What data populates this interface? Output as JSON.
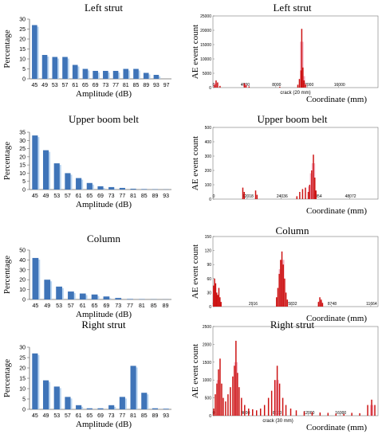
{
  "colors": {
    "bar_blue": "#3f74b8",
    "bar_shadow": "#aaccee",
    "ae_red": "#cc1111",
    "ae_pink": "#f2a0b8"
  },
  "chart_data": [
    {
      "type": "bar",
      "title": "Left strut",
      "xlabel": "Amplitude (dB)",
      "ylabel": "Percentage",
      "ylim": [
        0,
        30
      ],
      "yticks": [
        "0",
        "5",
        "10",
        "15",
        "20",
        "25",
        "30"
      ],
      "categories": [
        "45",
        "49",
        "53",
        "57",
        "61",
        "65",
        "69",
        "73",
        "77",
        "81",
        "85",
        "89",
        "93",
        "97"
      ],
      "values": [
        27,
        12,
        11,
        11,
        7,
        5,
        4,
        4,
        4,
        5,
        5,
        3,
        2,
        0
      ]
    },
    {
      "type": "bar",
      "title": "Upper boom belt",
      "xlabel": "Amplitude (dB)",
      "ylabel": "Percentage",
      "ylim": [
        0,
        35
      ],
      "yticks": [
        "0",
        "5",
        "10",
        "15",
        "20",
        "25",
        "30",
        "35"
      ],
      "categories": [
        "45",
        "49",
        "53",
        "57",
        "61",
        "65",
        "69",
        "73",
        "77",
        "81",
        "85",
        "89",
        "93"
      ],
      "values": [
        33,
        24,
        16,
        10,
        7,
        4,
        2,
        1.5,
        1,
        0.5,
        0.3,
        0.2,
        0.1
      ]
    },
    {
      "type": "bar",
      "title": "Column",
      "xlabel": "Amplitude (dB)",
      "ylabel": "Percentage",
      "ylim": [
        0,
        50
      ],
      "yticks": [
        "0",
        "10",
        "20",
        "30",
        "40",
        "50"
      ],
      "categories": [
        "45",
        "49",
        "53",
        "57",
        "61",
        "65",
        "69",
        "73",
        "77",
        "81",
        "85",
        "89"
      ],
      "values": [
        42,
        20,
        13,
        8,
        6,
        5,
        3,
        1.5,
        0.5,
        0.3,
        0.2,
        0.1
      ]
    },
    {
      "type": "bar",
      "title": "Right strut",
      "xlabel": "Amplitude (dB)",
      "ylabel": "Percentage",
      "ylim": [
        0,
        30
      ],
      "yticks": [
        "0",
        "5",
        "10",
        "15",
        "20",
        "25",
        "30"
      ],
      "categories": [
        "45",
        "49",
        "53",
        "57",
        "61",
        "65",
        "69",
        "73",
        "77",
        "81",
        "85",
        "89",
        "93"
      ],
      "values": [
        27,
        14,
        11,
        6,
        2,
        0.5,
        0.5,
        2,
        6,
        21,
        8,
        0.5,
        0.3
      ]
    },
    {
      "type": "bar",
      "title": "Left strut",
      "xlabel": "Coordinate (mm)",
      "ylabel": "AE event count",
      "xlim": [
        0,
        21000
      ],
      "ylim": [
        0,
        25000
      ],
      "yticks": [
        "0",
        "5000",
        "10000",
        "15000",
        "20000",
        "25000"
      ],
      "xticks": [
        {
          "v": 0,
          "label": "0"
        },
        {
          "v": 4000,
          "label": "4000"
        },
        {
          "v": 8000,
          "label": "8000"
        },
        {
          "v": 12000,
          "label": "12000"
        },
        {
          "v": 16000,
          "label": "16000"
        }
      ],
      "annotation": {
        "text": "crack (20 mm)",
        "x": 10500
      },
      "bars": [
        [
          200,
          1000
        ],
        [
          400,
          2500
        ],
        [
          600,
          1800
        ],
        [
          900,
          600
        ],
        [
          4000,
          1500
        ],
        [
          4200,
          800
        ],
        [
          4600,
          400
        ],
        [
          8500,
          300
        ],
        [
          10800,
          1000
        ],
        [
          11000,
          3000
        ],
        [
          11200,
          6000
        ],
        [
          11300,
          20500
        ],
        [
          11450,
          7000
        ],
        [
          11600,
          2500
        ],
        [
          11800,
          1200
        ]
      ],
      "pink": [
        [
          300,
          1500
        ],
        [
          4100,
          1200
        ],
        [
          11300,
          16000
        ],
        [
          11500,
          4000
        ]
      ]
    },
    {
      "type": "bar",
      "title": "Upper boom belt",
      "xlabel": "Coordinate (mm)",
      "ylabel": "AE event count",
      "xlim": [
        0,
        58000
      ],
      "ylim": [
        0,
        500
      ],
      "yticks": [
        "0",
        "100",
        "200",
        "300",
        "400",
        "500"
      ],
      "xticks": [
        {
          "v": 0,
          "label": "0"
        },
        {
          "v": 12018,
          "label": "12018"
        },
        {
          "v": 24036,
          "label": "24036"
        },
        {
          "v": 36054,
          "label": "36054"
        },
        {
          "v": 48072,
          "label": "48072"
        }
      ],
      "bars": [
        [
          10500,
          80
        ],
        [
          11000,
          50
        ],
        [
          15000,
          60
        ],
        [
          15500,
          30
        ],
        [
          29500,
          20
        ],
        [
          30500,
          50
        ],
        [
          31500,
          70
        ],
        [
          32500,
          80
        ],
        [
          33500,
          50
        ],
        [
          34000,
          100
        ],
        [
          34700,
          200
        ],
        [
          35300,
          310
        ],
        [
          35800,
          150
        ],
        [
          36200,
          60
        ]
      ],
      "pink": [
        [
          34700,
          180
        ],
        [
          35300,
          250
        ],
        [
          34000,
          90
        ]
      ]
    },
    {
      "type": "bar",
      "title": "Column",
      "xlabel": "Coordinate (mm)",
      "ylabel": "AE event count",
      "xlim": [
        0,
        12200
      ],
      "ylim": [
        0,
        150
      ],
      "yticks": [
        "0",
        "30",
        "60",
        "90",
        "120",
        "150"
      ],
      "xticks": [
        {
          "v": 0,
          "label": "0"
        },
        {
          "v": 2916,
          "label": "2916"
        },
        {
          "v": 5832,
          "label": "5832"
        },
        {
          "v": 8748,
          "label": "8748"
        },
        {
          "v": 11664,
          "label": "11664"
        }
      ],
      "bars": [
        [
          50,
          45
        ],
        [
          120,
          60
        ],
        [
          200,
          50
        ],
        [
          280,
          30
        ],
        [
          360,
          25
        ],
        [
          440,
          40
        ],
        [
          520,
          20
        ],
        [
          600,
          10
        ],
        [
          4700,
          20
        ],
        [
          4800,
          40
        ],
        [
          4900,
          70
        ],
        [
          5000,
          100
        ],
        [
          5100,
          118
        ],
        [
          5200,
          90
        ],
        [
          5300,
          60
        ],
        [
          5400,
          30
        ],
        [
          5500,
          15
        ],
        [
          7800,
          10
        ],
        [
          7900,
          20
        ],
        [
          8000,
          15
        ],
        [
          8100,
          8
        ]
      ],
      "pink": [
        [
          120,
          40
        ],
        [
          5000,
          80
        ],
        [
          5150,
          100
        ],
        [
          7950,
          12
        ]
      ]
    },
    {
      "type": "bar",
      "title": "Right strut",
      "xlabel": "Coordinate (mm)",
      "ylabel": "AE event count",
      "xlim": [
        0,
        20800
      ],
      "ylim": [
        0,
        2500
      ],
      "yticks": [
        "0",
        "500",
        "1000",
        "1500",
        "2000",
        "2500"
      ],
      "xticks": [
        {
          "v": 0,
          "label": "0"
        },
        {
          "v": 4000,
          "label": "4000"
        },
        {
          "v": 8000,
          "label": "8000"
        },
        {
          "v": 12000,
          "label": "12000"
        },
        {
          "v": 16000,
          "label": "16000"
        }
      ],
      "annotation": {
        "text": "crack (30 mm)",
        "x": 8200
      },
      "bars": [
        [
          100,
          200
        ],
        [
          300,
          600
        ],
        [
          500,
          900
        ],
        [
          700,
          1300
        ],
        [
          900,
          1600
        ],
        [
          1100,
          900
        ],
        [
          1300,
          500
        ],
        [
          1600,
          400
        ],
        [
          1900,
          600
        ],
        [
          2200,
          800
        ],
        [
          2500,
          1100
        ],
        [
          2700,
          1400
        ],
        [
          2900,
          2100
        ],
        [
          3100,
          1200
        ],
        [
          3300,
          800
        ],
        [
          3600,
          500
        ],
        [
          4000,
          300
        ],
        [
          4500,
          200
        ],
        [
          5000,
          180
        ],
        [
          5500,
          150
        ],
        [
          6000,
          200
        ],
        [
          6500,
          300
        ],
        [
          7000,
          500
        ],
        [
          7400,
          700
        ],
        [
          7800,
          1000
        ],
        [
          8100,
          1400
        ],
        [
          8400,
          900
        ],
        [
          8800,
          500
        ],
        [
          9200,
          300
        ],
        [
          9800,
          200
        ],
        [
          10500,
          150
        ],
        [
          11500,
          120
        ],
        [
          12500,
          100
        ],
        [
          13500,
          90
        ],
        [
          14500,
          80
        ],
        [
          15500,
          60
        ],
        [
          16500,
          50
        ],
        [
          17500,
          80
        ],
        [
          18500,
          70
        ],
        [
          19500,
          300
        ],
        [
          20000,
          450
        ],
        [
          20400,
          300
        ]
      ],
      "pink": [
        [
          700,
          1000
        ],
        [
          2900,
          1500
        ],
        [
          8100,
          1000
        ],
        [
          20000,
          300
        ]
      ]
    }
  ]
}
